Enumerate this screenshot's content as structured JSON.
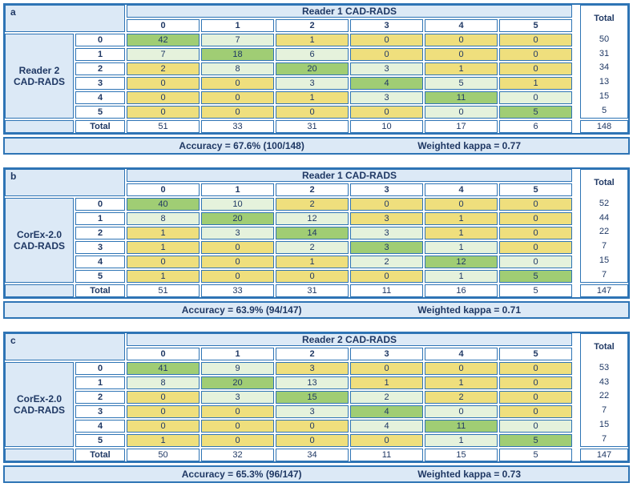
{
  "colors": {
    "border": "#2e74b5",
    "header_fill": "#dce9f6",
    "text_navy": "#1f3864",
    "exact_match_green": "#a0cd74",
    "adjacent_light_green": "#e5f2dc",
    "discordant_yellow": "#efdf7d",
    "cell_white": "#ffffff"
  },
  "shared": {
    "total_label": "Total",
    "category_labels": [
      "0",
      "1",
      "2",
      "3",
      "4",
      "5"
    ]
  },
  "panels": [
    {
      "letter": "a",
      "col_header": "Reader 1 CAD-RADS",
      "row_header_lines": [
        "Reader 2",
        "CAD-RADS"
      ],
      "matrix": [
        [
          42,
          7,
          1,
          0,
          0,
          0
        ],
        [
          7,
          18,
          6,
          0,
          0,
          0
        ],
        [
          2,
          8,
          20,
          3,
          1,
          0
        ],
        [
          0,
          0,
          3,
          4,
          5,
          1
        ],
        [
          0,
          0,
          1,
          3,
          11,
          0
        ],
        [
          0,
          0,
          0,
          0,
          0,
          5
        ]
      ],
      "row_totals": [
        50,
        31,
        34,
        13,
        15,
        5
      ],
      "col_totals": [
        51,
        33,
        31,
        10,
        17,
        6
      ],
      "grand_total": 148,
      "accuracy_text": "Accuracy = 67.6% (100/148)",
      "kappa_text": "Weighted kappa = 0.77"
    },
    {
      "letter": "b",
      "col_header": "Reader 1 CAD-RADS",
      "row_header_lines": [
        "CorEx-2.0",
        "CAD-RADS"
      ],
      "matrix": [
        [
          40,
          10,
          2,
          0,
          0,
          0
        ],
        [
          8,
          20,
          12,
          3,
          1,
          0
        ],
        [
          1,
          3,
          14,
          3,
          1,
          0
        ],
        [
          1,
          0,
          2,
          3,
          1,
          0
        ],
        [
          0,
          0,
          1,
          2,
          12,
          0
        ],
        [
          1,
          0,
          0,
          0,
          1,
          5
        ]
      ],
      "row_totals": [
        52,
        44,
        22,
        7,
        15,
        7
      ],
      "col_totals": [
        51,
        33,
        31,
        11,
        16,
        5
      ],
      "grand_total": 147,
      "accuracy_text": "Accuracy = 63.9% (94/147)",
      "kappa_text": "Weighted kappa = 0.71"
    },
    {
      "letter": "c",
      "col_header": "Reader 2 CAD-RADS",
      "row_header_lines": [
        "CorEx-2.0",
        "CAD-RADS"
      ],
      "matrix": [
        [
          41,
          9,
          3,
          0,
          0,
          0
        ],
        [
          8,
          20,
          13,
          1,
          1,
          0
        ],
        [
          0,
          3,
          15,
          2,
          2,
          0
        ],
        [
          0,
          0,
          3,
          4,
          0,
          0
        ],
        [
          0,
          0,
          0,
          4,
          11,
          0
        ],
        [
          1,
          0,
          0,
          0,
          1,
          5
        ]
      ],
      "row_totals": [
        53,
        43,
        22,
        7,
        15,
        7
      ],
      "col_totals": [
        50,
        32,
        34,
        11,
        15,
        5
      ],
      "grand_total": 147,
      "accuracy_text": "Accuracy = 65.3% (96/147)",
      "kappa_text": "Weighted kappa = 0.73"
    }
  ],
  "chart_data": [
    {
      "type": "heatmap",
      "title": "a",
      "xlabel": "Reader 1 CAD-RADS",
      "ylabel": "Reader 2 CAD-RADS",
      "x_categories": [
        "0",
        "1",
        "2",
        "3",
        "4",
        "5"
      ],
      "y_categories": [
        "0",
        "1",
        "2",
        "3",
        "4",
        "5"
      ],
      "matrix": [
        [
          42,
          7,
          1,
          0,
          0,
          0
        ],
        [
          7,
          18,
          6,
          0,
          0,
          0
        ],
        [
          2,
          8,
          20,
          3,
          1,
          0
        ],
        [
          0,
          0,
          3,
          4,
          5,
          1
        ],
        [
          0,
          0,
          1,
          3,
          11,
          0
        ],
        [
          0,
          0,
          0,
          0,
          0,
          5
        ]
      ],
      "row_totals": [
        50,
        31,
        34,
        13,
        15,
        5
      ],
      "col_totals": [
        51,
        33,
        31,
        10,
        17,
        6
      ],
      "grand_total": 148,
      "annotations": [
        "Accuracy = 67.6% (100/148)",
        "Weighted kappa = 0.77"
      ],
      "color_rule": "diagonal=green, |row-col|=1=light-green, else yellow"
    },
    {
      "type": "heatmap",
      "title": "b",
      "xlabel": "Reader 1 CAD-RADS",
      "ylabel": "CorEx-2.0 CAD-RADS",
      "x_categories": [
        "0",
        "1",
        "2",
        "3",
        "4",
        "5"
      ],
      "y_categories": [
        "0",
        "1",
        "2",
        "3",
        "4",
        "5"
      ],
      "matrix": [
        [
          40,
          10,
          2,
          0,
          0,
          0
        ],
        [
          8,
          20,
          12,
          3,
          1,
          0
        ],
        [
          1,
          3,
          14,
          3,
          1,
          0
        ],
        [
          1,
          0,
          2,
          3,
          1,
          0
        ],
        [
          0,
          0,
          1,
          2,
          12,
          0
        ],
        [
          1,
          0,
          0,
          0,
          1,
          5
        ]
      ],
      "row_totals": [
        52,
        44,
        22,
        7,
        15,
        7
      ],
      "col_totals": [
        51,
        33,
        31,
        11,
        16,
        5
      ],
      "grand_total": 147,
      "annotations": [
        "Accuracy = 63.9% (94/147)",
        "Weighted kappa = 0.71"
      ],
      "color_rule": "diagonal=green, |row-col|=1=light-green, else yellow"
    },
    {
      "type": "heatmap",
      "title": "c",
      "xlabel": "Reader 2 CAD-RADS",
      "ylabel": "CorEx-2.0 CAD-RADS",
      "x_categories": [
        "0",
        "1",
        "2",
        "3",
        "4",
        "5"
      ],
      "y_categories": [
        "0",
        "1",
        "2",
        "3",
        "4",
        "5"
      ],
      "matrix": [
        [
          41,
          9,
          3,
          0,
          0,
          0
        ],
        [
          8,
          20,
          13,
          1,
          1,
          0
        ],
        [
          0,
          3,
          15,
          2,
          2,
          0
        ],
        [
          0,
          0,
          3,
          4,
          0,
          0
        ],
        [
          0,
          0,
          0,
          4,
          11,
          0
        ],
        [
          1,
          0,
          0,
          0,
          1,
          5
        ]
      ],
      "row_totals": [
        53,
        43,
        22,
        7,
        15,
        7
      ],
      "col_totals": [
        50,
        32,
        34,
        11,
        15,
        5
      ],
      "grand_total": 147,
      "annotations": [
        "Accuracy = 65.3% (96/147)",
        "Weighted kappa = 0.73"
      ],
      "color_rule": "diagonal=green, |row-col|=1=light-green, else yellow"
    }
  ]
}
